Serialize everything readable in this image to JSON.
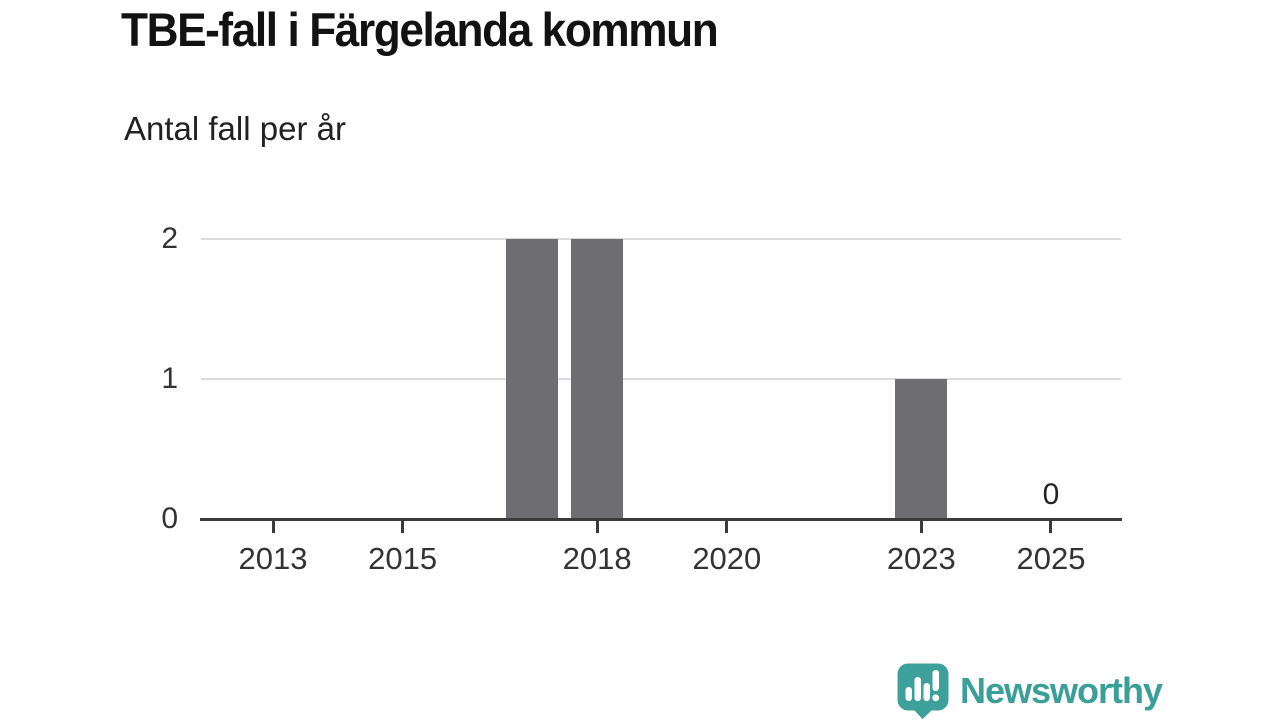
{
  "title": "TBE-fall i Färgelanda kommun",
  "subtitle": "Antal fall per år",
  "chart_data": {
    "type": "bar",
    "title": "TBE-fall i Färgelanda kommun",
    "subtitle_as_ylabel": "Antal fall per år",
    "x": [
      2012,
      2013,
      2014,
      2015,
      2016,
      2017,
      2018,
      2019,
      2020,
      2021,
      2022,
      2023,
      2024,
      2025
    ],
    "values": [
      0,
      0,
      0,
      0,
      0,
      2,
      2,
      0,
      0,
      0,
      0,
      1,
      0,
      0
    ],
    "x_tick_years": [
      2013,
      2015,
      2018,
      2020,
      2023,
      2025
    ],
    "x_tick_labels": [
      "2013",
      "2015",
      "2018",
      "2020",
      "2023",
      "2025"
    ],
    "y_ticks": [
      0,
      1,
      2
    ],
    "y_tick_labels": [
      "0",
      "1",
      "2"
    ],
    "ylim": [
      0,
      2
    ],
    "grid": true,
    "legend": "none",
    "annotations": [
      {
        "x": 2025,
        "label": "0"
      }
    ],
    "bar_color": "#6d6d72",
    "grid_color": "#dcdcdc",
    "axis_color": "#3a3a3a",
    "label_color": "#333333"
  },
  "footer": {
    "brand": "Newsworthy",
    "brand_color": "#3a9e99",
    "logo_icon": "bar-chart-speech-bubble-icon"
  }
}
